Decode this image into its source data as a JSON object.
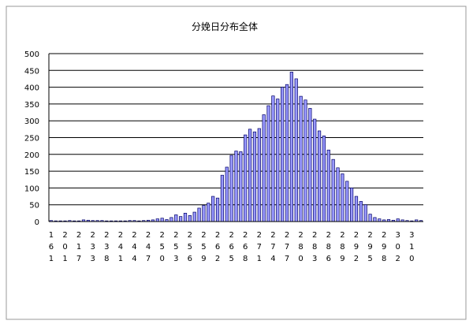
{
  "chart_data": {
    "type": "bar",
    "title": "分娩日分布全体",
    "categories": [
      "161",
      null,
      null,
      "201",
      null,
      null,
      "217",
      null,
      null,
      "233",
      null,
      null,
      "238",
      null,
      null,
      "241",
      null,
      null,
      "244",
      null,
      null,
      "247",
      null,
      null,
      "250",
      null,
      null,
      "253",
      null,
      null,
      "256",
      null,
      null,
      "259",
      null,
      null,
      "262",
      null,
      null,
      "265",
      null,
      null,
      "268",
      null,
      null,
      "271",
      null,
      null,
      "274",
      null,
      null,
      "277",
      null,
      null,
      "280",
      null,
      null,
      "283",
      null,
      null,
      "286",
      null,
      null,
      "289",
      null,
      null,
      "292",
      null,
      null,
      "295",
      null,
      null,
      "298",
      null,
      null,
      "302",
      null,
      null,
      "310",
      null,
      null
    ],
    "values": [
      3,
      2,
      2,
      2,
      3,
      2,
      2,
      5,
      4,
      3,
      3,
      3,
      2,
      2,
      2,
      2,
      2,
      3,
      3,
      2,
      3,
      4,
      5,
      8,
      10,
      6,
      12,
      20,
      15,
      25,
      18,
      28,
      40,
      48,
      55,
      75,
      70,
      138,
      162,
      197,
      210,
      208,
      258,
      275,
      267,
      277,
      318,
      345,
      374,
      365,
      400,
      408,
      445,
      425,
      373,
      362,
      337,
      305,
      270,
      255,
      213,
      185,
      160,
      142,
      120,
      100,
      75,
      60,
      50,
      22,
      12,
      8,
      5,
      6,
      4,
      8,
      5,
      3,
      2,
      5,
      3
    ],
    "color": "#9999ff",
    "ylim": [
      0,
      500
    ],
    "yticks": [
      0,
      50,
      100,
      150,
      200,
      250,
      300,
      350,
      400,
      450,
      500
    ],
    "grid": true
  }
}
